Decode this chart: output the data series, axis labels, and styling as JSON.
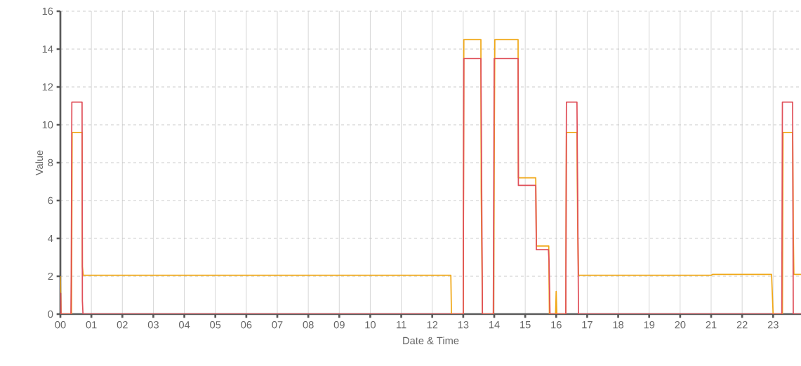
{
  "chart_data": {
    "type": "line",
    "xlabel": "Date & Time",
    "ylabel": "Value",
    "grid": true,
    "marker": "none",
    "line_style": "solid",
    "xlim": [
      0,
      23.9
    ],
    "ylim": [
      0,
      16
    ],
    "xticks": [
      {
        "value": 0,
        "label": "00"
      },
      {
        "value": 1,
        "label": "01"
      },
      {
        "value": 2,
        "label": "02"
      },
      {
        "value": 3,
        "label": "03"
      },
      {
        "value": 4,
        "label": "04"
      },
      {
        "value": 5,
        "label": "05"
      },
      {
        "value": 6,
        "label": "06"
      },
      {
        "value": 7,
        "label": "07"
      },
      {
        "value": 8,
        "label": "08"
      },
      {
        "value": 9,
        "label": "09"
      },
      {
        "value": 10,
        "label": "10"
      },
      {
        "value": 11,
        "label": "11"
      },
      {
        "value": 12,
        "label": "12"
      },
      {
        "value": 13,
        "label": "13"
      },
      {
        "value": 14,
        "label": "14"
      },
      {
        "value": 15,
        "label": "15"
      },
      {
        "value": 16,
        "label": "16"
      },
      {
        "value": 17,
        "label": "17"
      },
      {
        "value": 18,
        "label": "18"
      },
      {
        "value": 19,
        "label": "19"
      },
      {
        "value": 20,
        "label": "20"
      },
      {
        "value": 21,
        "label": "21"
      },
      {
        "value": 22,
        "label": "22"
      },
      {
        "value": 23,
        "label": "23"
      }
    ],
    "yticks": [
      0,
      2,
      4,
      6,
      8,
      10,
      12,
      14,
      16
    ],
    "series": [
      {
        "color": "#f0a818",
        "x": [
          0,
          0.02,
          0.36,
          0.38,
          0.7,
          0.71,
          0.74,
          12.6,
          12.62,
          13.0,
          13.02,
          13.57,
          13.58,
          13.62,
          13.98,
          14.0,
          14.02,
          14.77,
          14.78,
          15.34,
          15.36,
          15.76,
          15.78,
          15.98,
          16.0,
          16.02,
          16.31,
          16.33,
          16.67,
          16.69,
          16.72,
          21.0,
          21.05,
          22.95,
          23.0,
          23.3,
          23.32,
          23.63,
          23.65,
          23.67,
          23.9
        ],
        "values": [
          2.0,
          0,
          0,
          9.6,
          9.6,
          2.5,
          2.05,
          2.05,
          0,
          0,
          14.5,
          14.5,
          6.5,
          0,
          0,
          8.3,
          14.5,
          14.5,
          7.2,
          7.2,
          3.6,
          3.6,
          0,
          0,
          1.2,
          0,
          0,
          9.6,
          9.6,
          5.0,
          2.05,
          2.05,
          2.1,
          2.1,
          0,
          0,
          9.6,
          9.6,
          4.5,
          2.1,
          2.1
        ]
      },
      {
        "color": "#e0505a",
        "x": [
          0,
          0.01,
          0.02,
          0.34,
          0.35,
          0.37,
          0.7,
          0.71,
          0.73,
          13.0,
          13.02,
          13.57,
          13.62,
          13.97,
          14.0,
          14.77,
          14.78,
          15.34,
          15.36,
          15.75,
          15.77,
          15.8,
          16.31,
          16.33,
          16.67,
          16.72,
          23.28,
          23.3,
          23.63,
          23.65,
          23.9
        ],
        "values": [
          0,
          1.1,
          0,
          0,
          2.1,
          11.2,
          11.2,
          0.7,
          0,
          0,
          13.5,
          13.5,
          0,
          0,
          13.5,
          13.5,
          6.8,
          6.8,
          3.4,
          3.4,
          2.8,
          0,
          0,
          11.2,
          11.2,
          0,
          0,
          11.2,
          11.2,
          0,
          0
        ]
      }
    ]
  }
}
